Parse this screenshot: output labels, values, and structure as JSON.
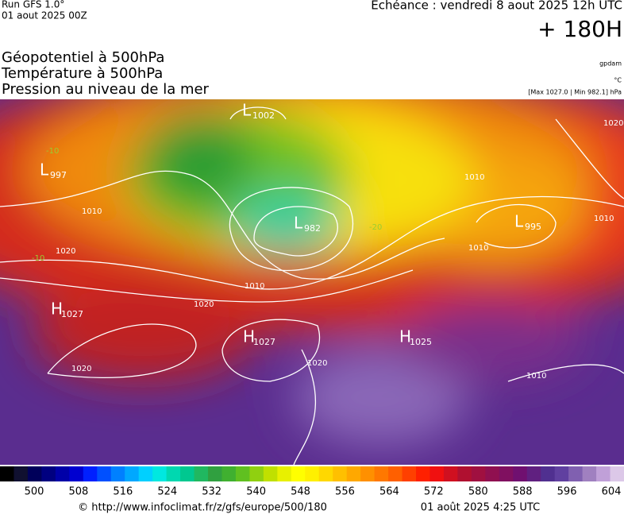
{
  "header": {
    "run": "Run GFS 1.0°",
    "run_date": "01 aout 2025 00Z",
    "valid": "Echéance : vendredi 8 aout 2025 12h UTC",
    "lead": "+ 180H",
    "titles": [
      "Géopotentiel à 500hPa",
      "Température à 500hPa",
      "Pression au niveau de la mer"
    ],
    "units": [
      "gpdam",
      "°C",
      "[Max 1027.0 | Min 982.1] hPa"
    ]
  },
  "map": {
    "systems": [
      {
        "kind": "L",
        "value": "1002"
      },
      {
        "kind": "L",
        "value": "997"
      },
      {
        "kind": "L",
        "value": "982"
      },
      {
        "kind": "L",
        "value": "995"
      },
      {
        "kind": "H",
        "value": "1027"
      },
      {
        "kind": "H",
        "value": "1027"
      },
      {
        "kind": "H",
        "value": "1025"
      }
    ],
    "isobar_labels": [
      "1010",
      "1010",
      "1010",
      "1020",
      "1010",
      "1020",
      "1020",
      "1020",
      "1010",
      "1010",
      "1020"
    ],
    "temperature_labels": [
      "-10",
      "-20",
      "-10"
    ]
  },
  "colorbar": {
    "ticks": [
      500,
      508,
      516,
      524,
      532,
      540,
      548,
      556,
      564,
      572,
      580,
      588,
      596,
      604
    ]
  },
  "footer": {
    "source": "© http://www.infoclimat.fr/z/gfs/europe/500/180",
    "generated": "01 août 2025  4:25 UTC"
  }
}
